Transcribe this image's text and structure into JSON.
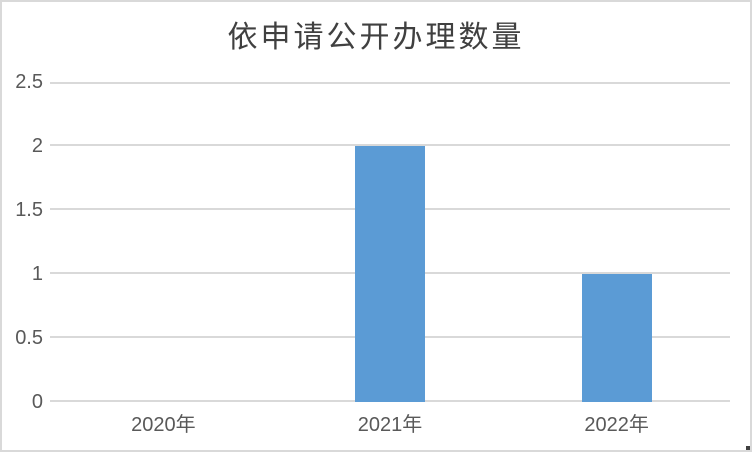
{
  "chart_data": {
    "type": "bar",
    "title": "依申请公开办理数量",
    "categories": [
      "2020年",
      "2021年",
      "2022年"
    ],
    "values": [
      0,
      2,
      1
    ],
    "xlabel": "",
    "ylabel": "",
    "ylim": [
      0,
      2.5
    ],
    "yticks": [
      0,
      0.5,
      1,
      1.5,
      2,
      2.5
    ],
    "ytick_labels": [
      "0",
      "0.5",
      "1",
      "1.5",
      "2",
      "2.5"
    ],
    "grid": true,
    "legend": false,
    "colors": {
      "bar": "#5B9BD5",
      "gridline": "#D9D9D9",
      "chart_border": "#D9D9D9",
      "title_text": "#404040",
      "axis_text": "#595959",
      "background": "#FFFFFF",
      "corner_mark": "#404040"
    }
  }
}
